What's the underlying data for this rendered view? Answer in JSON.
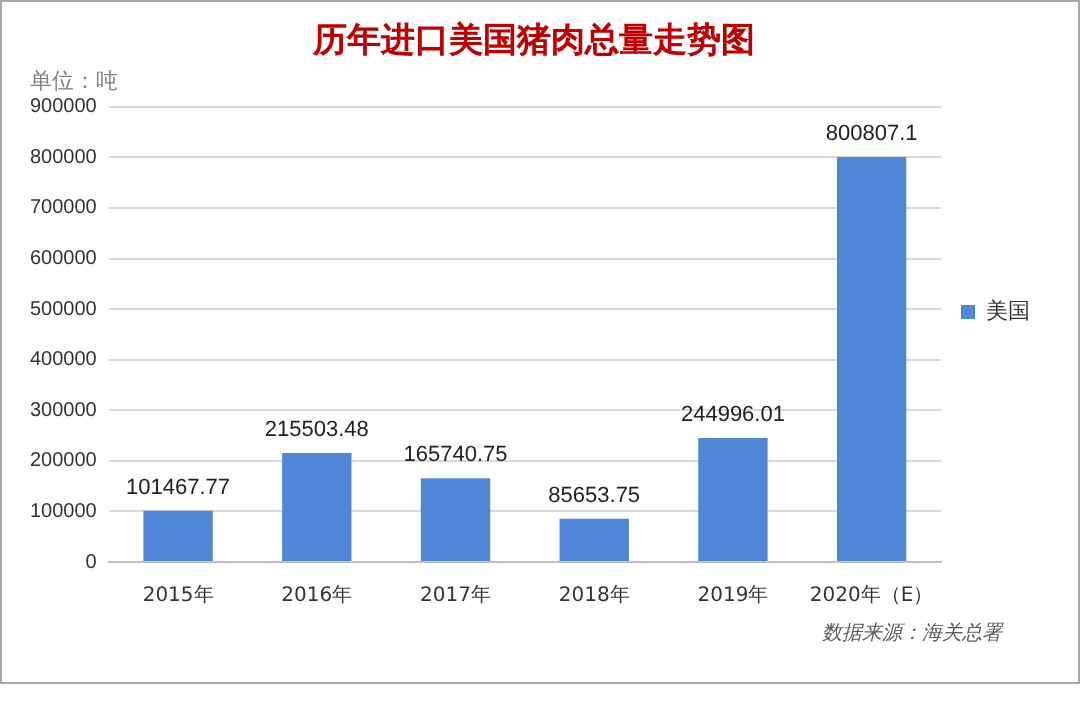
{
  "chart_data": {
    "type": "bar",
    "title": "历年进口美国猪肉总量走势图",
    "ylabel": "单位：吨",
    "categories": [
      "2015年",
      "2016年",
      "2017年",
      "2018年",
      "2019年",
      "2020年（E）"
    ],
    "series": [
      {
        "name": "美国",
        "color": "#4f86d6",
        "values": [
          101467.77,
          215503.48,
          165740.75,
          85653.75,
          244996.01,
          800807.1
        ]
      }
    ],
    "ylim": [
      0,
      900000
    ],
    "yticks": [
      0,
      100000,
      200000,
      300000,
      400000,
      500000,
      600000,
      700000,
      800000,
      900000
    ],
    "grid": "y",
    "legend": "right",
    "data_labels": true,
    "annotations": [
      "数据来源：海关总署"
    ]
  }
}
